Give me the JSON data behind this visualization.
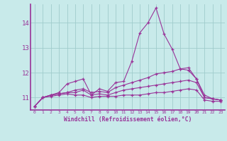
{
  "xlabel": "Windchill (Refroidissement éolien,°C)",
  "x_ticks": [
    0,
    1,
    2,
    3,
    4,
    5,
    6,
    7,
    8,
    9,
    10,
    11,
    12,
    13,
    14,
    15,
    16,
    17,
    18,
    19,
    20,
    21,
    22,
    23
  ],
  "ylim": [
    10.5,
    14.75
  ],
  "yticks": [
    11,
    12,
    13,
    14
  ],
  "bg_color": "#c8eaea",
  "line_color": "#993399",
  "grid_color": "#a0cccc",
  "series1": [
    10.65,
    11.0,
    11.1,
    11.2,
    11.55,
    11.65,
    11.75,
    11.1,
    11.35,
    11.25,
    11.6,
    11.65,
    12.45,
    13.6,
    14.0,
    14.6,
    13.55,
    12.95,
    12.15,
    12.1,
    11.75,
    11.1,
    10.95,
    10.9
  ],
  "series2": [
    10.65,
    11.0,
    11.1,
    11.15,
    11.2,
    11.3,
    11.35,
    11.2,
    11.25,
    11.2,
    11.4,
    11.5,
    11.6,
    11.7,
    11.8,
    11.95,
    12.0,
    12.05,
    12.15,
    12.2,
    11.75,
    11.0,
    10.95,
    10.9
  ],
  "series3": [
    10.65,
    11.0,
    11.1,
    11.15,
    11.2,
    11.2,
    11.3,
    11.1,
    11.15,
    11.1,
    11.2,
    11.3,
    11.35,
    11.4,
    11.45,
    11.5,
    11.55,
    11.6,
    11.65,
    11.7,
    11.6,
    11.0,
    10.95,
    10.9
  ],
  "series4": [
    10.65,
    11.0,
    11.05,
    11.1,
    11.15,
    11.1,
    11.1,
    11.0,
    11.05,
    11.05,
    11.05,
    11.1,
    11.1,
    11.1,
    11.15,
    11.2,
    11.2,
    11.25,
    11.3,
    11.35,
    11.3,
    10.9,
    10.85,
    10.85
  ]
}
